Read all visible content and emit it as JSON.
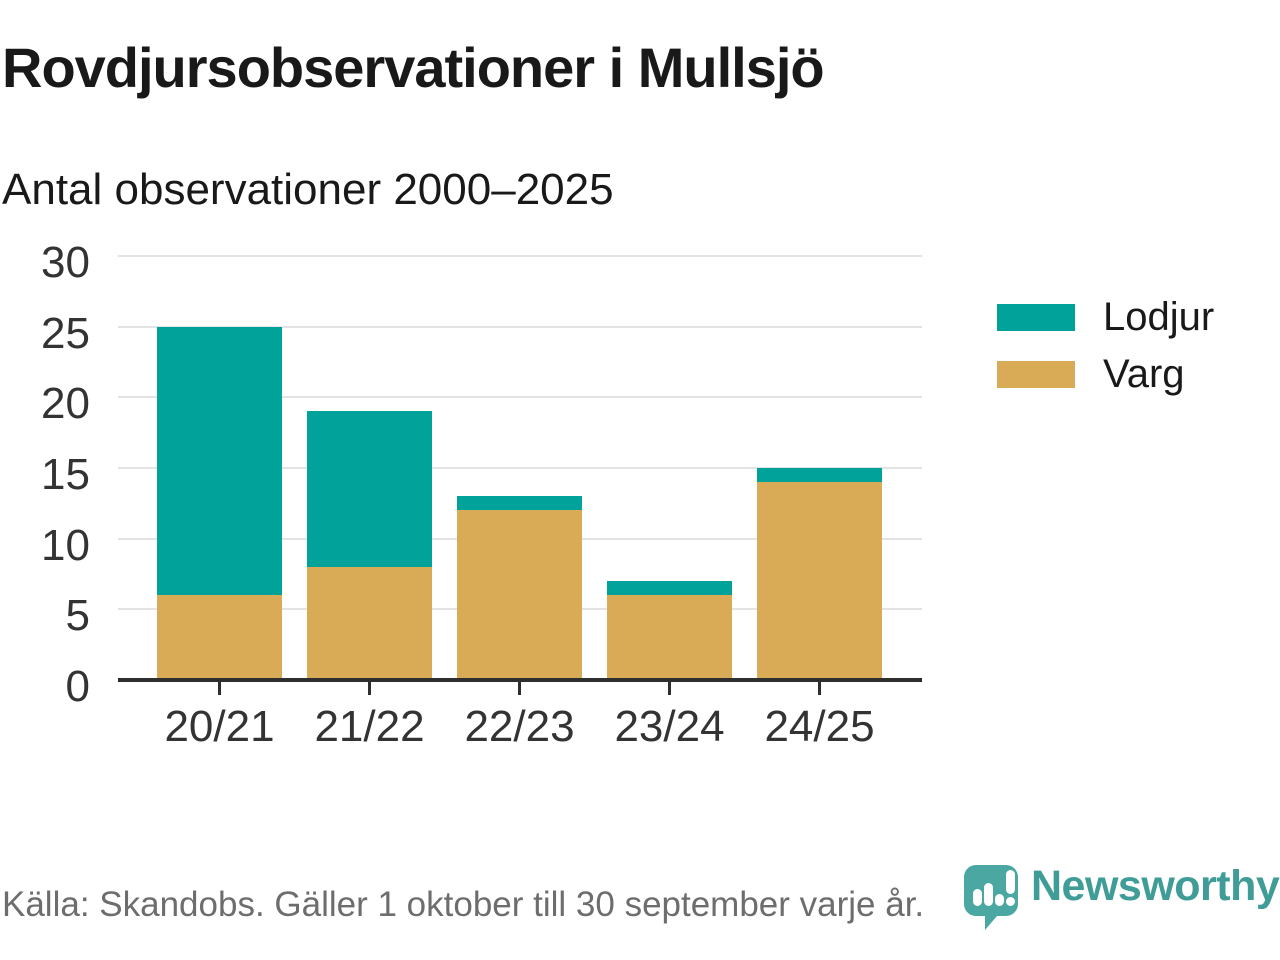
{
  "header": {
    "title": "Rovdjursobservationer i Mullsjö",
    "subtitle": "Antal observationer 2000–2025"
  },
  "chart_data": {
    "type": "bar",
    "stacked": true,
    "title": "Rovdjursobservationer i Mullsjö",
    "subtitle": "Antal observationer 2000–2025",
    "categories": [
      "20/21",
      "21/22",
      "22/23",
      "23/24",
      "24/25"
    ],
    "series": [
      {
        "name": "Lodjur",
        "color": "#00a29a",
        "values": [
          19,
          11,
          1,
          1,
          1
        ]
      },
      {
        "name": "Varg",
        "color": "#d9ab57",
        "values": [
          6,
          8,
          12,
          6,
          14
        ]
      }
    ],
    "stack_order_bottom_to_top": [
      "Varg",
      "Lodjur"
    ],
    "totals": [
      25,
      19,
      13,
      7,
      15
    ],
    "xlabel": "",
    "ylabel": "",
    "ylim": [
      0,
      30
    ],
    "yticks": [
      0,
      5,
      10,
      15,
      20,
      25,
      30
    ],
    "grid": "horizontal",
    "grid_color": "#e3e3e3",
    "axis_color": "#2e2e2e",
    "legend_position": "right",
    "legend": [
      "Lodjur",
      "Varg"
    ]
  },
  "footer": {
    "source": "Källa: Skandobs. Gäller 1 oktober till 30 september varje år."
  },
  "brand": {
    "name": "Newsworthy",
    "wordmark_color": "#3f9c96",
    "icon_color": "#4ba7a1",
    "icon": "newsworthy-bubble-chart-icon"
  }
}
